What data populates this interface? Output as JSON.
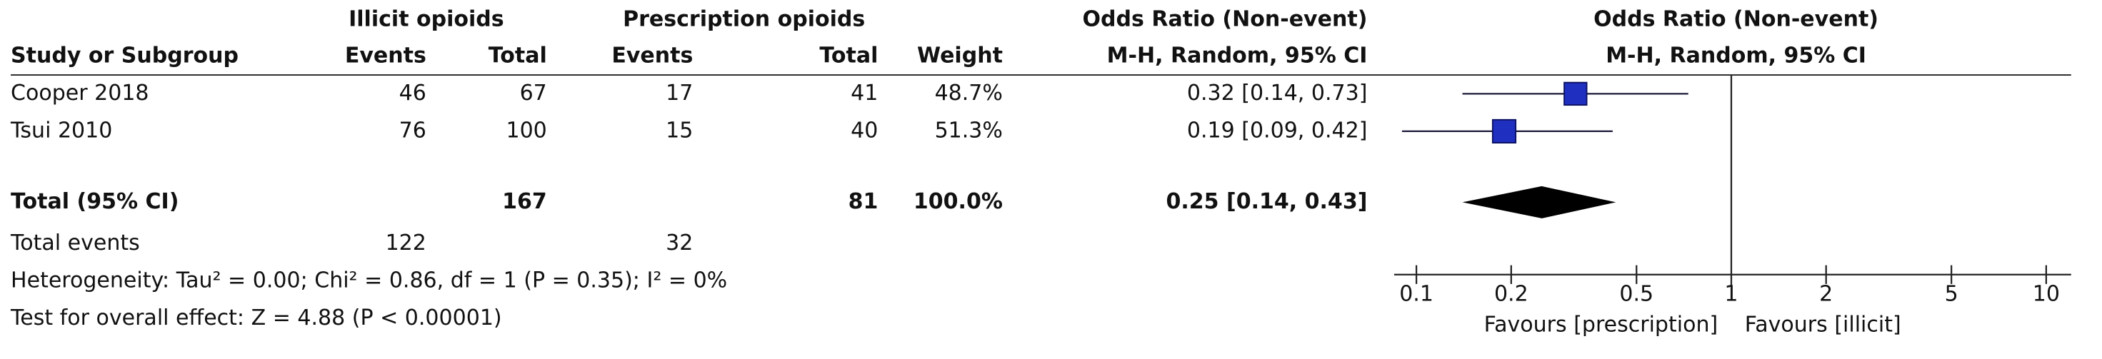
{
  "chart_data": {
    "type": "forest",
    "group_headers": [
      "Illicit opioids",
      "Prescription opioids",
      "Odds Ratio (Non-event)",
      "Odds Ratio (Non-event)"
    ],
    "columns": [
      "Study or Subgroup",
      "Events",
      "Total",
      "Events",
      "Total",
      "Weight",
      "M-H, Random, 95% CI",
      "M-H, Random, 95% CI"
    ],
    "studies": [
      {
        "name": "Cooper 2018",
        "events1": 46,
        "total1": 67,
        "events2": 17,
        "total2": 41,
        "weight": 48.7,
        "weight_label": "48.7%",
        "or": 0.32,
        "lower": 0.14,
        "upper": 0.73,
        "ci_label": "0.32 [0.14, 0.73]"
      },
      {
        "name": "Tsui 2010",
        "events1": 76,
        "total1": 100,
        "events2": 15,
        "total2": 40,
        "weight": 51.3,
        "weight_label": "51.3%",
        "or": 0.19,
        "lower": 0.09,
        "upper": 0.42,
        "ci_label": "0.19 [0.09, 0.42]"
      }
    ],
    "total": {
      "name": "Total (95% CI)",
      "total1": 167,
      "total2": 81,
      "weight": 100,
      "weight_label": "100.0%",
      "or": 0.25,
      "lower": 0.14,
      "upper": 0.43,
      "ci_label": "0.25 [0.14, 0.43]"
    },
    "total_events": {
      "name": "Total events",
      "events1": 122,
      "events2": 32
    },
    "heterogeneity": "Heterogeneity: Tau² = 0.00; Chi² = 0.86, df = 1 (P = 0.35); I² = 0%",
    "overall_effect": "Test for overall effect: Z = 4.88 (P < 0.00001)",
    "xscale": "log",
    "xlim": [
      0.085,
      12
    ],
    "xticks": [
      0.1,
      0.2,
      0.5,
      1,
      2,
      5,
      10
    ],
    "xlabel_left": "Favours [prescription]",
    "xlabel_right": "Favours [illicit]",
    "color": "#1f2fbf",
    "diamond_color": "#000000"
  }
}
